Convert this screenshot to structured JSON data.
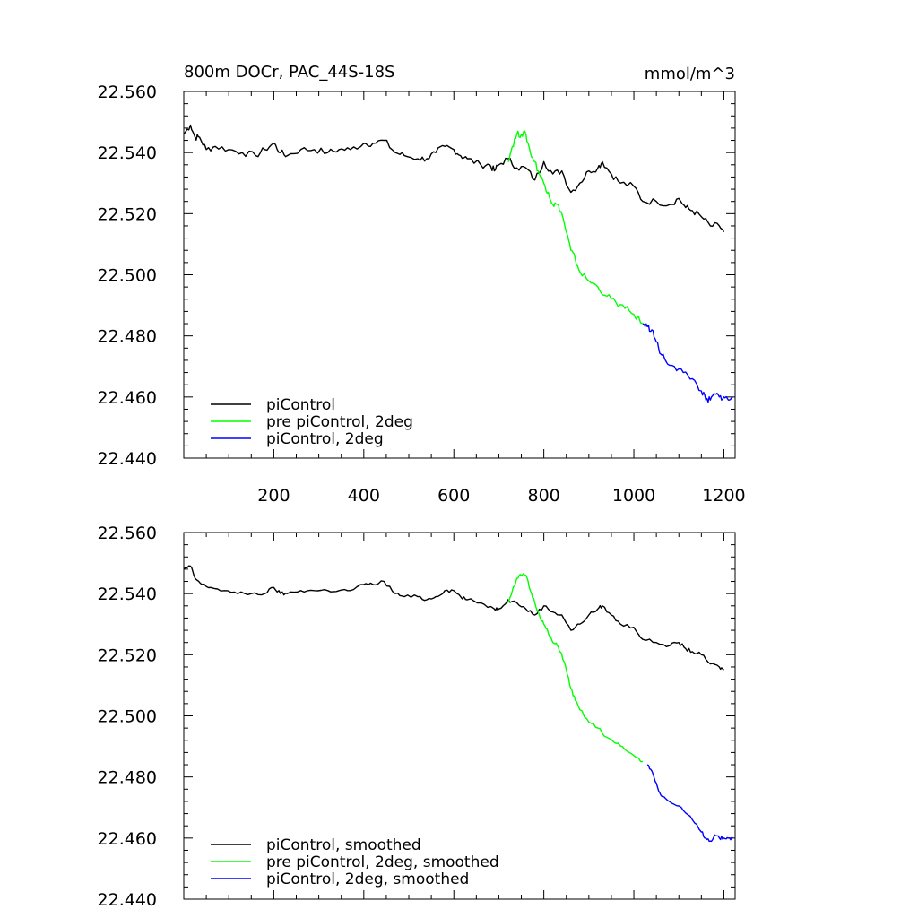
{
  "chart_data": [
    {
      "type": "line",
      "title_left": "800m DOCr, PAC_44S-18S",
      "title_right": "mmol/m^3",
      "xlim": [
        0,
        1225
      ],
      "ylim": [
        22.44,
        22.56
      ],
      "x_ticks": [
        200,
        400,
        600,
        800,
        1000,
        1200
      ],
      "x_tick_labels": [
        "200",
        "400",
        "600",
        "800",
        "1000",
        "1200"
      ],
      "y_ticks": [
        22.44,
        22.46,
        22.48,
        22.5,
        22.52,
        22.54,
        22.56
      ],
      "y_tick_labels": [
        "22.440",
        "22.460",
        "22.480",
        "22.500",
        "22.520",
        "22.540",
        "22.560"
      ],
      "legend_position": "bottom-left",
      "series": [
        {
          "name": "piControl",
          "color": "#000000",
          "x": [
            0,
            15,
            25,
            35,
            50,
            70,
            100,
            130,
            160,
            180,
            200,
            215,
            230,
            260,
            290,
            320,
            345,
            370,
            400,
            420,
            445,
            470,
            490,
            520,
            540,
            560,
            580,
            600,
            615,
            630,
            660,
            680,
            690,
            700,
            720,
            740,
            760,
            780,
            800,
            820,
            840,
            860,
            880,
            900,
            920,
            930,
            950,
            970,
            1000,
            1020,
            1050,
            1080,
            1100,
            1115,
            1130,
            1150,
            1170,
            1190,
            1200
          ],
          "y": [
            22.546,
            22.549,
            22.545,
            22.545,
            22.541,
            22.542,
            22.541,
            22.54,
            22.539,
            22.541,
            22.543,
            22.54,
            22.539,
            22.541,
            22.541,
            22.54,
            22.541,
            22.541,
            22.543,
            22.543,
            22.544,
            22.54,
            22.539,
            22.538,
            22.538,
            22.54,
            22.542,
            22.541,
            22.539,
            22.538,
            22.536,
            22.536,
            22.534,
            22.536,
            22.538,
            22.535,
            22.535,
            22.531,
            22.537,
            22.533,
            22.534,
            22.527,
            22.53,
            22.534,
            22.535,
            22.537,
            22.533,
            22.53,
            22.529,
            22.524,
            22.524,
            22.523,
            22.525,
            22.522,
            22.521,
            22.519,
            22.516,
            22.516,
            22.514
          ]
        },
        {
          "name": "pre piControl, 2deg",
          "color": "#00ff00",
          "x": [
            720,
            730,
            740,
            750,
            760,
            770,
            780,
            790,
            800,
            810,
            820,
            830,
            840,
            850,
            860,
            870,
            880,
            900,
            920,
            940,
            960,
            980,
            1000,
            1020
          ],
          "y": [
            22.537,
            22.542,
            22.546,
            22.546,
            22.546,
            22.54,
            22.537,
            22.533,
            22.53,
            22.527,
            22.523,
            22.523,
            22.52,
            22.514,
            22.508,
            22.505,
            22.501,
            22.498,
            22.496,
            22.493,
            22.491,
            22.489,
            22.487,
            22.484
          ]
        },
        {
          "name": "piControl, 2deg",
          "color": "#0000ff",
          "x": [
            1020,
            1030,
            1040,
            1050,
            1060,
            1070,
            1090,
            1110,
            1130,
            1150,
            1160,
            1170,
            1180,
            1190,
            1200,
            1210,
            1220
          ],
          "y": [
            22.484,
            22.483,
            22.482,
            22.478,
            22.474,
            22.472,
            22.47,
            22.468,
            22.466,
            22.462,
            22.459,
            22.459,
            22.461,
            22.46,
            22.46,
            22.459,
            22.46
          ]
        }
      ]
    },
    {
      "type": "line",
      "xlim": [
        0,
        1225
      ],
      "ylim": [
        22.44,
        22.56
      ],
      "x_ticks": [
        200,
        400,
        600,
        800,
        1000,
        1200
      ],
      "y_ticks": [
        22.44,
        22.46,
        22.48,
        22.5,
        22.52,
        22.54,
        22.56
      ],
      "y_tick_labels": [
        "22.440",
        "22.460",
        "22.480",
        "22.500",
        "22.520",
        "22.540",
        "22.560"
      ],
      "legend_position": "bottom-left",
      "series": [
        {
          "name": "piControl, smoothed",
          "color": "#000000",
          "x": [
            0,
            15,
            25,
            40,
            60,
            90,
            120,
            150,
            180,
            200,
            215,
            230,
            260,
            290,
            320,
            345,
            370,
            400,
            420,
            445,
            470,
            490,
            520,
            540,
            560,
            580,
            600,
            615,
            630,
            660,
            690,
            700,
            720,
            740,
            760,
            780,
            800,
            820,
            840,
            860,
            880,
            900,
            920,
            930,
            950,
            970,
            1000,
            1020,
            1050,
            1080,
            1100,
            1115,
            1130,
            1150,
            1170,
            1190,
            1200
          ],
          "y": [
            22.548,
            22.549,
            22.545,
            22.543,
            22.542,
            22.541,
            22.54,
            22.54,
            22.54,
            22.542,
            22.54,
            22.54,
            22.541,
            22.541,
            22.541,
            22.541,
            22.541,
            22.543,
            22.543,
            22.544,
            22.54,
            22.539,
            22.539,
            22.538,
            22.539,
            22.541,
            22.541,
            22.539,
            22.538,
            22.537,
            22.535,
            22.535,
            22.538,
            22.537,
            22.535,
            22.533,
            22.536,
            22.534,
            22.533,
            22.528,
            22.53,
            22.533,
            22.535,
            22.536,
            22.533,
            22.53,
            22.529,
            22.525,
            22.524,
            22.523,
            22.524,
            22.522,
            22.521,
            22.52,
            22.517,
            22.516,
            22.515
          ]
        },
        {
          "name": "pre piControl, 2deg, smoothed",
          "color": "#00ff00",
          "x": [
            720,
            730,
            740,
            750,
            760,
            770,
            780,
            790,
            800,
            810,
            820,
            830,
            840,
            850,
            860,
            870,
            880,
            900,
            920,
            940,
            960,
            980,
            1000,
            1020
          ],
          "y": [
            22.537,
            22.541,
            22.545,
            22.546,
            22.546,
            22.541,
            22.537,
            22.533,
            22.53,
            22.527,
            22.524,
            22.523,
            22.52,
            22.515,
            22.509,
            22.505,
            22.502,
            22.498,
            22.496,
            22.493,
            22.491,
            22.489,
            22.487,
            22.485
          ]
        },
        {
          "name": "piControl, 2deg, smoothed",
          "color": "#0000ff",
          "x": [
            1030,
            1040,
            1050,
            1060,
            1070,
            1090,
            1110,
            1130,
            1150,
            1160,
            1170,
            1180,
            1190,
            1200,
            1210,
            1220
          ],
          "y": [
            22.484,
            22.482,
            22.478,
            22.474,
            22.473,
            22.471,
            22.469,
            22.466,
            22.462,
            22.46,
            22.459,
            22.461,
            22.46,
            22.46,
            22.46,
            22.46
          ]
        }
      ]
    }
  ]
}
